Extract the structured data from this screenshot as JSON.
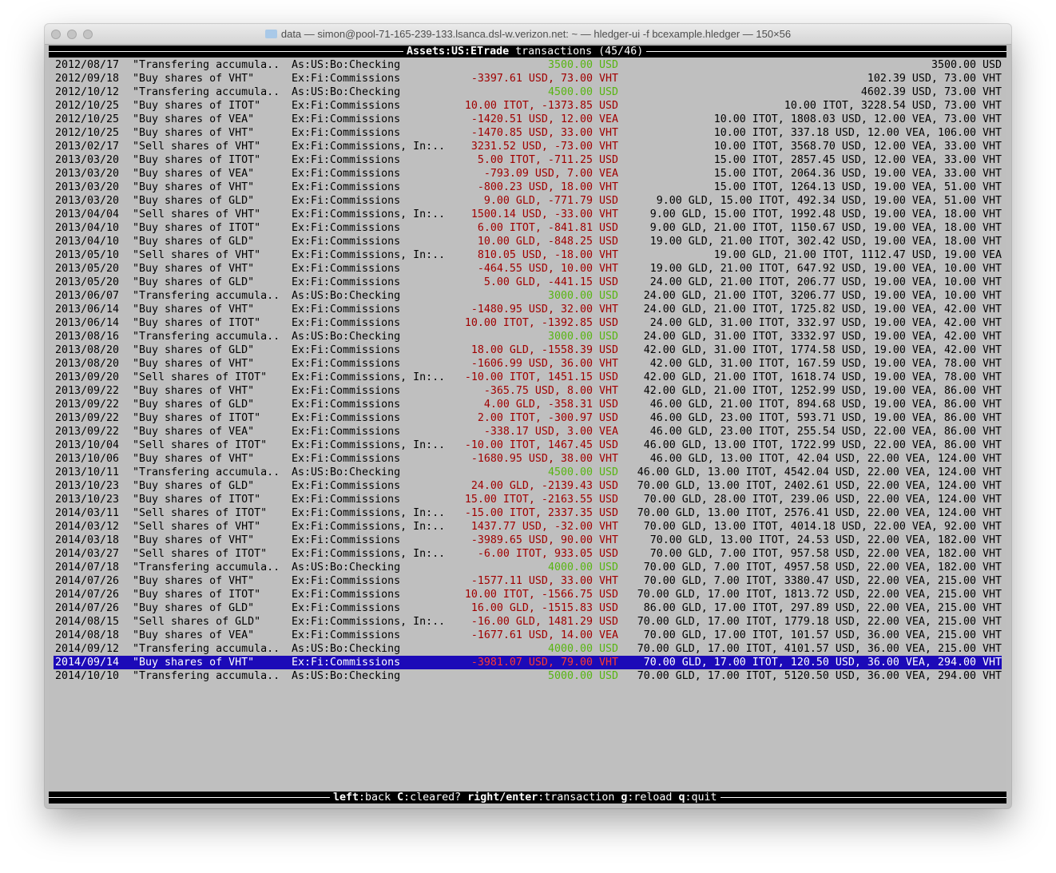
{
  "window": {
    "title": "data — simon@pool-71-165-239-133.lsanca.dsl-w.verizon.net: ~ — hledger-ui -f bcexample.hledger — 150×56"
  },
  "header": {
    "account": "Assets:US:ETrade",
    "suffix": " transactions (45/46)"
  },
  "footer": {
    "keys": [
      {
        "key": "left",
        "action": "back"
      },
      {
        "key": "C",
        "action": "cleared?"
      },
      {
        "key": "right/enter",
        "action": "transaction"
      },
      {
        "key": "g",
        "action": "reload"
      },
      {
        "key": "q",
        "action": "quit"
      }
    ]
  },
  "colors": {
    "negative": "#a00000",
    "positive": "#58b512",
    "selection": "#1c0ab8",
    "background": "#bfbfbf"
  },
  "selected_index": 44,
  "rows": [
    {
      "date": "2012/08/17",
      "desc": "\"Transfering accumula..",
      "account": "As:US:Bo:Checking",
      "amount": "3500.00 USD",
      "balance": "3500.00 USD",
      "sign": "pos"
    },
    {
      "date": "2012/09/18",
      "desc": "\"Buy shares of VHT\"",
      "account": "Ex:Fi:Commissions",
      "amount": "-3397.61 USD, 73.00 VHT",
      "balance": "102.39 USD, 73.00 VHT",
      "sign": "neg"
    },
    {
      "date": "2012/10/12",
      "desc": "\"Transfering accumula..",
      "account": "As:US:Bo:Checking",
      "amount": "4500.00 USD",
      "balance": "4602.39 USD, 73.00 VHT",
      "sign": "pos"
    },
    {
      "date": "2012/10/25",
      "desc": "\"Buy shares of ITOT\"",
      "account": "Ex:Fi:Commissions",
      "amount": "10.00 ITOT, -1373.85 USD",
      "balance": "10.00 ITOT, 3228.54 USD, 73.00 VHT",
      "sign": "neg"
    },
    {
      "date": "2012/10/25",
      "desc": "\"Buy shares of VEA\"",
      "account": "Ex:Fi:Commissions",
      "amount": "-1420.51 USD, 12.00 VEA",
      "balance": "10.00 ITOT, 1808.03 USD, 12.00 VEA, 73.00 VHT",
      "sign": "neg"
    },
    {
      "date": "2012/10/25",
      "desc": "\"Buy shares of VHT\"",
      "account": "Ex:Fi:Commissions",
      "amount": "-1470.85 USD, 33.00 VHT",
      "balance": "10.00 ITOT, 337.18 USD, 12.00 VEA, 106.00 VHT",
      "sign": "neg"
    },
    {
      "date": "2013/02/17",
      "desc": "\"Sell shares of VHT\"",
      "account": "Ex:Fi:Commissions, In:..",
      "amount": "3231.52 USD, -73.00 VHT",
      "balance": "10.00 ITOT, 3568.70 USD, 12.00 VEA, 33.00 VHT",
      "sign": "neg"
    },
    {
      "date": "2013/03/20",
      "desc": "\"Buy shares of ITOT\"",
      "account": "Ex:Fi:Commissions",
      "amount": "5.00 ITOT, -711.25 USD",
      "balance": "15.00 ITOT, 2857.45 USD, 12.00 VEA, 33.00 VHT",
      "sign": "neg"
    },
    {
      "date": "2013/03/20",
      "desc": "\"Buy shares of VEA\"",
      "account": "Ex:Fi:Commissions",
      "amount": "-793.09 USD, 7.00 VEA",
      "balance": "15.00 ITOT, 2064.36 USD, 19.00 VEA, 33.00 VHT",
      "sign": "neg"
    },
    {
      "date": "2013/03/20",
      "desc": "\"Buy shares of VHT\"",
      "account": "Ex:Fi:Commissions",
      "amount": "-800.23 USD, 18.00 VHT",
      "balance": "15.00 ITOT, 1264.13 USD, 19.00 VEA, 51.00 VHT",
      "sign": "neg"
    },
    {
      "date": "2013/03/20",
      "desc": "\"Buy shares of GLD\"",
      "account": "Ex:Fi:Commissions",
      "amount": "9.00 GLD, -771.79 USD",
      "balance": "9.00 GLD, 15.00 ITOT, 492.34 USD, 19.00 VEA, 51.00 VHT",
      "sign": "neg"
    },
    {
      "date": "2013/04/04",
      "desc": "\"Sell shares of VHT\"",
      "account": "Ex:Fi:Commissions, In:..",
      "amount": "1500.14 USD, -33.00 VHT",
      "balance": "9.00 GLD, 15.00 ITOT, 1992.48 USD, 19.00 VEA, 18.00 VHT",
      "sign": "neg"
    },
    {
      "date": "2013/04/10",
      "desc": "\"Buy shares of ITOT\"",
      "account": "Ex:Fi:Commissions",
      "amount": "6.00 ITOT, -841.81 USD",
      "balance": "9.00 GLD, 21.00 ITOT, 1150.67 USD, 19.00 VEA, 18.00 VHT",
      "sign": "neg"
    },
    {
      "date": "2013/04/10",
      "desc": "\"Buy shares of GLD\"",
      "account": "Ex:Fi:Commissions",
      "amount": "10.00 GLD, -848.25 USD",
      "balance": "19.00 GLD, 21.00 ITOT, 302.42 USD, 19.00 VEA, 18.00 VHT",
      "sign": "neg"
    },
    {
      "date": "2013/05/10",
      "desc": "\"Sell shares of VHT\"",
      "account": "Ex:Fi:Commissions, In:..",
      "amount": "810.05 USD, -18.00 VHT",
      "balance": "19.00 GLD, 21.00 ITOT, 1112.47 USD, 19.00 VEA",
      "sign": "neg"
    },
    {
      "date": "2013/05/20",
      "desc": "\"Buy shares of VHT\"",
      "account": "Ex:Fi:Commissions",
      "amount": "-464.55 USD, 10.00 VHT",
      "balance": "19.00 GLD, 21.00 ITOT, 647.92 USD, 19.00 VEA, 10.00 VHT",
      "sign": "neg"
    },
    {
      "date": "2013/05/20",
      "desc": "\"Buy shares of GLD\"",
      "account": "Ex:Fi:Commissions",
      "amount": "5.00 GLD, -441.15 USD",
      "balance": "24.00 GLD, 21.00 ITOT, 206.77 USD, 19.00 VEA, 10.00 VHT",
      "sign": "neg"
    },
    {
      "date": "2013/06/07",
      "desc": "\"Transfering accumula..",
      "account": "As:US:Bo:Checking",
      "amount": "3000.00 USD",
      "balance": "24.00 GLD, 21.00 ITOT, 3206.77 USD, 19.00 VEA, 10.00 VHT",
      "sign": "pos"
    },
    {
      "date": "2013/06/14",
      "desc": "\"Buy shares of VHT\"",
      "account": "Ex:Fi:Commissions",
      "amount": "-1480.95 USD, 32.00 VHT",
      "balance": "24.00 GLD, 21.00 ITOT, 1725.82 USD, 19.00 VEA, 42.00 VHT",
      "sign": "neg"
    },
    {
      "date": "2013/06/14",
      "desc": "\"Buy shares of ITOT\"",
      "account": "Ex:Fi:Commissions",
      "amount": "10.00 ITOT, -1392.85 USD",
      "balance": "24.00 GLD, 31.00 ITOT, 332.97 USD, 19.00 VEA, 42.00 VHT",
      "sign": "neg"
    },
    {
      "date": "2013/08/16",
      "desc": "\"Transfering accumula..",
      "account": "As:US:Bo:Checking",
      "amount": "3000.00 USD",
      "balance": "24.00 GLD, 31.00 ITOT, 3332.97 USD, 19.00 VEA, 42.00 VHT",
      "sign": "pos"
    },
    {
      "date": "2013/08/20",
      "desc": "\"Buy shares of GLD\"",
      "account": "Ex:Fi:Commissions",
      "amount": "18.00 GLD, -1558.39 USD",
      "balance": "42.00 GLD, 31.00 ITOT, 1774.58 USD, 19.00 VEA, 42.00 VHT",
      "sign": "neg"
    },
    {
      "date": "2013/08/20",
      "desc": "\"Buy shares of VHT\"",
      "account": "Ex:Fi:Commissions",
      "amount": "-1606.99 USD, 36.00 VHT",
      "balance": "42.00 GLD, 31.00 ITOT, 167.59 USD, 19.00 VEA, 78.00 VHT",
      "sign": "neg"
    },
    {
      "date": "2013/09/20",
      "desc": "\"Sell shares of ITOT\"",
      "account": "Ex:Fi:Commissions, In:..",
      "amount": "-10.00 ITOT, 1451.15 USD",
      "balance": "42.00 GLD, 21.00 ITOT, 1618.74 USD, 19.00 VEA, 78.00 VHT",
      "sign": "neg"
    },
    {
      "date": "2013/09/22",
      "desc": "\"Buy shares of VHT\"",
      "account": "Ex:Fi:Commissions",
      "amount": "-365.75 USD, 8.00 VHT",
      "balance": "42.00 GLD, 21.00 ITOT, 1252.99 USD, 19.00 VEA, 86.00 VHT",
      "sign": "neg"
    },
    {
      "date": "2013/09/22",
      "desc": "\"Buy shares of GLD\"",
      "account": "Ex:Fi:Commissions",
      "amount": "4.00 GLD, -358.31 USD",
      "balance": "46.00 GLD, 21.00 ITOT, 894.68 USD, 19.00 VEA, 86.00 VHT",
      "sign": "neg"
    },
    {
      "date": "2013/09/22",
      "desc": "\"Buy shares of ITOT\"",
      "account": "Ex:Fi:Commissions",
      "amount": "2.00 ITOT, -300.97 USD",
      "balance": "46.00 GLD, 23.00 ITOT, 593.71 USD, 19.00 VEA, 86.00 VHT",
      "sign": "neg"
    },
    {
      "date": "2013/09/22",
      "desc": "\"Buy shares of VEA\"",
      "account": "Ex:Fi:Commissions",
      "amount": "-338.17 USD, 3.00 VEA",
      "balance": "46.00 GLD, 23.00 ITOT, 255.54 USD, 22.00 VEA, 86.00 VHT",
      "sign": "neg"
    },
    {
      "date": "2013/10/04",
      "desc": "\"Sell shares of ITOT\"",
      "account": "Ex:Fi:Commissions, In:..",
      "amount": "-10.00 ITOT, 1467.45 USD",
      "balance": "46.00 GLD, 13.00 ITOT, 1722.99 USD, 22.00 VEA, 86.00 VHT",
      "sign": "neg"
    },
    {
      "date": "2013/10/06",
      "desc": "\"Buy shares of VHT\"",
      "account": "Ex:Fi:Commissions",
      "amount": "-1680.95 USD, 38.00 VHT",
      "balance": "46.00 GLD, 13.00 ITOT, 42.04 USD, 22.00 VEA, 124.00 VHT",
      "sign": "neg"
    },
    {
      "date": "2013/10/11",
      "desc": "\"Transfering accumula..",
      "account": "As:US:Bo:Checking",
      "amount": "4500.00 USD",
      "balance": "46.00 GLD, 13.00 ITOT, 4542.04 USD, 22.00 VEA, 124.00 VHT",
      "sign": "pos"
    },
    {
      "date": "2013/10/23",
      "desc": "\"Buy shares of GLD\"",
      "account": "Ex:Fi:Commissions",
      "amount": "24.00 GLD, -2139.43 USD",
      "balance": "70.00 GLD, 13.00 ITOT, 2402.61 USD, 22.00 VEA, 124.00 VHT",
      "sign": "neg"
    },
    {
      "date": "2013/10/23",
      "desc": "\"Buy shares of ITOT\"",
      "account": "Ex:Fi:Commissions",
      "amount": "15.00 ITOT, -2163.55 USD",
      "balance": "70.00 GLD, 28.00 ITOT, 239.06 USD, 22.00 VEA, 124.00 VHT",
      "sign": "neg"
    },
    {
      "date": "2014/03/11",
      "desc": "\"Sell shares of ITOT\"",
      "account": "Ex:Fi:Commissions, In:..",
      "amount": "-15.00 ITOT, 2337.35 USD",
      "balance": "70.00 GLD, 13.00 ITOT, 2576.41 USD, 22.00 VEA, 124.00 VHT",
      "sign": "neg"
    },
    {
      "date": "2014/03/12",
      "desc": "\"Sell shares of VHT\"",
      "account": "Ex:Fi:Commissions, In:..",
      "amount": "1437.77 USD, -32.00 VHT",
      "balance": "70.00 GLD, 13.00 ITOT, 4014.18 USD, 22.00 VEA, 92.00 VHT",
      "sign": "neg"
    },
    {
      "date": "2014/03/18",
      "desc": "\"Buy shares of VHT\"",
      "account": "Ex:Fi:Commissions",
      "amount": "-3989.65 USD, 90.00 VHT",
      "balance": "70.00 GLD, 13.00 ITOT, 24.53 USD, 22.00 VEA, 182.00 VHT",
      "sign": "neg"
    },
    {
      "date": "2014/03/27",
      "desc": "\"Sell shares of ITOT\"",
      "account": "Ex:Fi:Commissions, In:..",
      "amount": "-6.00 ITOT, 933.05 USD",
      "balance": "70.00 GLD, 7.00 ITOT, 957.58 USD, 22.00 VEA, 182.00 VHT",
      "sign": "neg"
    },
    {
      "date": "2014/07/18",
      "desc": "\"Transfering accumula..",
      "account": "As:US:Bo:Checking",
      "amount": "4000.00 USD",
      "balance": "70.00 GLD, 7.00 ITOT, 4957.58 USD, 22.00 VEA, 182.00 VHT",
      "sign": "pos"
    },
    {
      "date": "2014/07/26",
      "desc": "\"Buy shares of VHT\"",
      "account": "Ex:Fi:Commissions",
      "amount": "-1577.11 USD, 33.00 VHT",
      "balance": "70.00 GLD, 7.00 ITOT, 3380.47 USD, 22.00 VEA, 215.00 VHT",
      "sign": "neg"
    },
    {
      "date": "2014/07/26",
      "desc": "\"Buy shares of ITOT\"",
      "account": "Ex:Fi:Commissions",
      "amount": "10.00 ITOT, -1566.75 USD",
      "balance": "70.00 GLD, 17.00 ITOT, 1813.72 USD, 22.00 VEA, 215.00 VHT",
      "sign": "neg"
    },
    {
      "date": "2014/07/26",
      "desc": "\"Buy shares of GLD\"",
      "account": "Ex:Fi:Commissions",
      "amount": "16.00 GLD, -1515.83 USD",
      "balance": "86.00 GLD, 17.00 ITOT, 297.89 USD, 22.00 VEA, 215.00 VHT",
      "sign": "neg"
    },
    {
      "date": "2014/08/15",
      "desc": "\"Sell shares of GLD\"",
      "account": "Ex:Fi:Commissions, In:..",
      "amount": "-16.00 GLD, 1481.29 USD",
      "balance": "70.00 GLD, 17.00 ITOT, 1779.18 USD, 22.00 VEA, 215.00 VHT",
      "sign": "neg"
    },
    {
      "date": "2014/08/18",
      "desc": "\"Buy shares of VEA\"",
      "account": "Ex:Fi:Commissions",
      "amount": "-1677.61 USD, 14.00 VEA",
      "balance": "70.00 GLD, 17.00 ITOT, 101.57 USD, 36.00 VEA, 215.00 VHT",
      "sign": "neg"
    },
    {
      "date": "2014/09/12",
      "desc": "\"Transfering accumula..",
      "account": "As:US:Bo:Checking",
      "amount": "4000.00 USD",
      "balance": "70.00 GLD, 17.00 ITOT, 4101.57 USD, 36.00 VEA, 215.00 VHT",
      "sign": "pos"
    },
    {
      "date": "2014/09/14",
      "desc": "\"Buy shares of VHT\"",
      "account": "Ex:Fi:Commissions",
      "amount": "-3981.07 USD, 79.00 VHT",
      "balance": "70.00 GLD, 17.00 ITOT, 120.50 USD, 36.00 VEA, 294.00 VHT",
      "sign": "neg"
    },
    {
      "date": "2014/10/10",
      "desc": "\"Transfering accumula..",
      "account": "As:US:Bo:Checking",
      "amount": "5000.00 USD",
      "balance": "70.00 GLD, 17.00 ITOT, 5120.50 USD, 36.00 VEA, 294.00 VHT",
      "sign": "pos"
    }
  ]
}
